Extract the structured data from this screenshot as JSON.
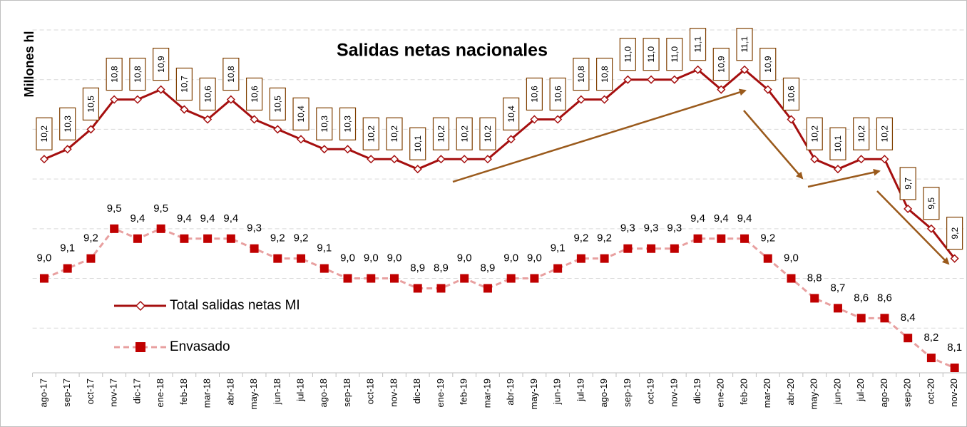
{
  "chart_data": {
    "type": "line",
    "title": "Salidas netas nacionales",
    "y_label": "Millones hl",
    "categories": [
      "ago-17",
      "sep-17",
      "oct-17",
      "nov-17",
      "dic-17",
      "ene-18",
      "feb-18",
      "mar-18",
      "abr-18",
      "may-18",
      "jun-18",
      "jul-18",
      "ago-18",
      "sep-18",
      "oct-18",
      "nov-18",
      "dic-18",
      "ene-19",
      "feb-19",
      "mar-19",
      "abr-19",
      "may-19",
      "jun-19",
      "jul-19",
      "ago-19",
      "sep-19",
      "oct-19",
      "nov-19",
      "dic-19",
      "ene-20",
      "feb-20",
      "mar-20",
      "abr-20",
      "may-20",
      "jun-20",
      "jul-20",
      "ago-20",
      "sep-20",
      "oct-20",
      "nov-20"
    ],
    "series": [
      {
        "name": "Total salidas netas MI",
        "color": "#a50f0f",
        "values": [
          10.2,
          10.3,
          10.5,
          10.8,
          10.8,
          10.9,
          10.7,
          10.6,
          10.8,
          10.6,
          10.5,
          10.4,
          10.3,
          10.3,
          10.2,
          10.2,
          10.1,
          10.2,
          10.2,
          10.2,
          10.4,
          10.6,
          10.6,
          10.8,
          10.8,
          11.0,
          11.0,
          11.0,
          11.1,
          10.9,
          11.1,
          10.9,
          10.6,
          10.2,
          10.1,
          10.2,
          10.2,
          9.7,
          9.5,
          9.2
        ],
        "value_labels": [
          "10,2",
          "10,3",
          "10,5",
          "10,8",
          "10,8",
          "10,9",
          "10,7",
          "10,6",
          "10,8",
          "10,6",
          "10,5",
          "10,4",
          "10,3",
          "10,3",
          "10,2",
          "10,2",
          "10,1",
          "10,2",
          "10,2",
          "10,2",
          "10,4",
          "10,6",
          "10,6",
          "10,8",
          "10,8",
          "11,0",
          "11,0",
          "11,0",
          "11,1",
          "10,9",
          "11,1",
          "10,9",
          "10,6",
          "10,2",
          "10,1",
          "10,2",
          "10,2",
          "9,7",
          "9,5",
          "9,2"
        ]
      },
      {
        "name": "Envasado",
        "color": "#e8a0a0",
        "values": [
          9.0,
          9.1,
          9.2,
          9.5,
          9.4,
          9.5,
          9.4,
          9.4,
          9.4,
          9.3,
          9.2,
          9.2,
          9.1,
          9.0,
          9.0,
          9.0,
          8.9,
          8.9,
          9.0,
          8.9,
          9.0,
          9.0,
          9.1,
          9.2,
          9.2,
          9.3,
          9.3,
          9.3,
          9.4,
          9.4,
          9.4,
          9.2,
          9.0,
          8.8,
          8.7,
          8.6,
          8.6,
          8.4,
          8.2,
          8.1
        ],
        "value_labels": [
          "9,0",
          "9,1",
          "9,2",
          "9,5",
          "9,4",
          "9,5",
          "9,4",
          "9,4",
          "9,4",
          "9,3",
          "9,2",
          "9,2",
          "9,1",
          "9,0",
          "9,0",
          "9,0",
          "8,9",
          "8,9",
          "9,0",
          "8,9",
          "9,0",
          "9,0",
          "9,1",
          "9,2",
          "9,2",
          "9,3",
          "9,3",
          "9,3",
          "9,4",
          "9,4",
          "9,4",
          "9,2",
          "9,0",
          "8,8",
          "8,7",
          "8,6",
          "8,6",
          "8,4",
          "8,2",
          "8,1"
        ]
      }
    ],
    "ylim": [
      8.05,
      11.5
    ],
    "yticks": [
      8.5,
      9.0,
      9.5,
      10.0,
      10.5,
      11.0,
      11.5
    ],
    "grid": true,
    "legend": "lower left"
  }
}
